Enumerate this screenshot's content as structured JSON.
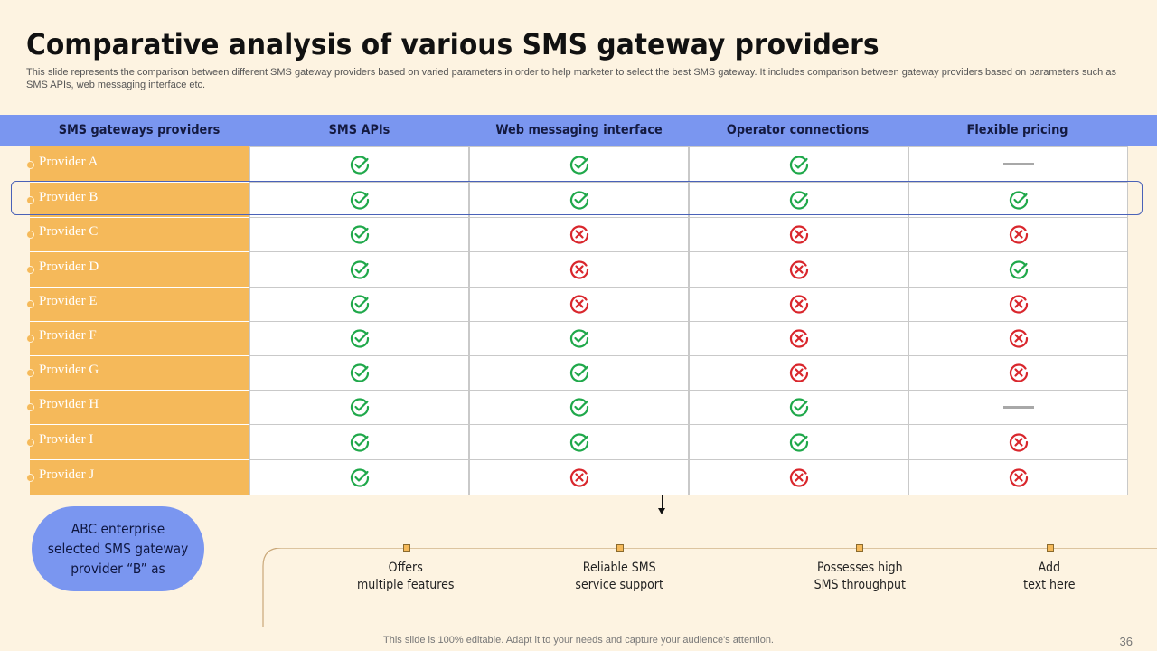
{
  "title": "Comparative analysis of various SMS gateway providers",
  "subtitle": "This slide represents the comparison between different SMS gateway providers based on varied parameters in order to help marketer to select the best SMS  gateway. It includes comparison between gateway providers based on parameters such as SMS APIs,  web messaging interface etc.",
  "table": {
    "headers": [
      "SMS gateways providers",
      "SMS APIs",
      "Web messaging interface",
      "Operator connections",
      "Flexible pricing"
    ],
    "rows": [
      {
        "provider": "Provider A",
        "values": [
          "check",
          "check",
          "check",
          "dash"
        ]
      },
      {
        "provider": "Provider B",
        "values": [
          "check",
          "check",
          "check",
          "check"
        ]
      },
      {
        "provider": "Provider C",
        "values": [
          "check",
          "cross",
          "cross",
          "cross"
        ]
      },
      {
        "provider": "Provider D",
        "values": [
          "check",
          "cross",
          "cross",
          "check"
        ]
      },
      {
        "provider": "Provider E",
        "values": [
          "check",
          "cross",
          "cross",
          "cross"
        ]
      },
      {
        "provider": "Provider F",
        "values": [
          "check",
          "check",
          "cross",
          "cross"
        ]
      },
      {
        "provider": "Provider G",
        "values": [
          "check",
          "check",
          "cross",
          "cross"
        ]
      },
      {
        "provider": "Provider H",
        "values": [
          "check",
          "check",
          "check",
          "dash"
        ]
      },
      {
        "provider": "Provider I",
        "values": [
          "check",
          "check",
          "check",
          "cross"
        ]
      },
      {
        "provider": "Provider J",
        "values": [
          "check",
          "cross",
          "cross",
          "cross"
        ]
      }
    ],
    "highlighted_row": "Provider B"
  },
  "callout": {
    "text": "ABC enterprise\nselected SMS gateway\nprovider “B” as"
  },
  "timeline": [
    "Offers\nmultiple features",
    "Reliable SMS\nservice support",
    "Possesses high\nSMS throughput",
    "Add\ntext here"
  ],
  "footer": "This slide is 100% editable. Adapt it to your needs and capture your audience's attention.",
  "page_number": "36",
  "colors": {
    "background": "#fdf3e1",
    "header": "#7a96f0",
    "provider_column": "#f5b95a",
    "check": "#1fa84a",
    "cross": "#d9262c",
    "highlight_border": "#4a62b8"
  },
  "icons": {
    "check": "check-circle-icon",
    "cross": "cross-circle-icon",
    "dash": "dash-icon"
  }
}
